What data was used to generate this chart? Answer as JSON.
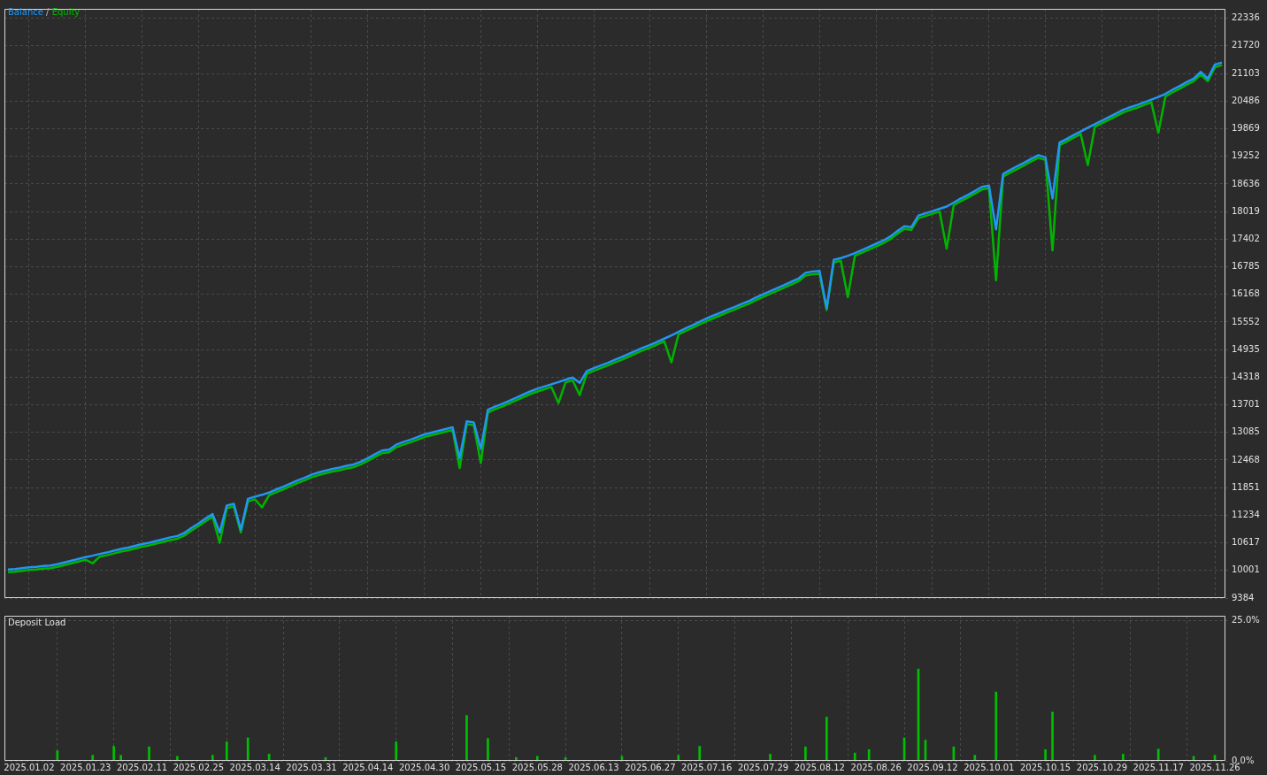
{
  "chart_data": [
    {
      "type": "line",
      "legend": "top left",
      "grid": true,
      "tick_labels": "y",
      "annotations": [
        "/"
      ],
      "categories": [
        null,
        null,
        null,
        "2025.01.02",
        null,
        null,
        null,
        null,
        null,
        null,
        null,
        "2025.01.23",
        null,
        null,
        null,
        null,
        null,
        null,
        null,
        "2025.02.11",
        null,
        null,
        null,
        null,
        null,
        null,
        null,
        "2025.02.25",
        null,
        null,
        null,
        null,
        null,
        null,
        null,
        "2025.03.14",
        null,
        null,
        null,
        null,
        null,
        null,
        null,
        "2025.03.31",
        null,
        null,
        null,
        null,
        null,
        null,
        null,
        "2025.04.14",
        null,
        null,
        null,
        null,
        null,
        null,
        null,
        "2025.04.30",
        null,
        null,
        null,
        null,
        null,
        null,
        null,
        "2025.05.15",
        null,
        null,
        null,
        null,
        null,
        null,
        null,
        "2025.05.28",
        null,
        null,
        null,
        null,
        null,
        null,
        null,
        "2025.06.13",
        null,
        null,
        null,
        null,
        null,
        null,
        null,
        "2025.06.27",
        null,
        null,
        null,
        null,
        null,
        null,
        null,
        "2025.07.16",
        null,
        null,
        null,
        null,
        null,
        null,
        null,
        "2025.07.29",
        null,
        null,
        null,
        null,
        null,
        null,
        null,
        "2025.08.12",
        null,
        null,
        null,
        null,
        null,
        null,
        null,
        "2025.08.26",
        null,
        null,
        null,
        null,
        null,
        null,
        null,
        "2025.09.12",
        null,
        null,
        null,
        null,
        null,
        null,
        null,
        "2025.10.01",
        null,
        null,
        null,
        null,
        null,
        null,
        null,
        "2025.10.15",
        null,
        null,
        null,
        null,
        null,
        null,
        null,
        "2025.10.29",
        null,
        null,
        null,
        null,
        null,
        null,
        null,
        "2025.11.17",
        null,
        null,
        null,
        null,
        null,
        null,
        null,
        "2025.11.26",
        null
      ],
      "ylim": [
        9384,
        22548
      ],
      "yticks": [
        9384,
        10001,
        10617,
        11234,
        11851,
        12468,
        13085,
        13701,
        14318,
        14935,
        15552,
        16168,
        16785,
        17402,
        18019,
        18636,
        19252,
        19869,
        20486,
        21103,
        21720,
        22336
      ],
      "series": [
        {
          "name": "Balance",
          "color": "#2196f3",
          "values": [
            10020,
            10030,
            10050,
            10070,
            10080,
            10100,
            10110,
            10140,
            10180,
            10220,
            10260,
            10300,
            10330,
            10370,
            10400,
            10440,
            10480,
            10510,
            10550,
            10590,
            10620,
            10660,
            10700,
            10740,
            10770,
            10840,
            10950,
            11050,
            11160,
            11260,
            10850,
            11450,
            11490,
            10910,
            11600,
            11650,
            11690,
            11740,
            11810,
            11870,
            11940,
            12010,
            12070,
            12140,
            12190,
            12230,
            12270,
            12300,
            12340,
            12370,
            12430,
            12510,
            12600,
            12680,
            12700,
            12810,
            12870,
            12920,
            12980,
            13040,
            13080,
            13120,
            13160,
            13200,
            12510,
            13330,
            13310,
            12720,
            13590,
            13660,
            13720,
            13790,
            13860,
            13930,
            14000,
            14060,
            14110,
            14160,
            14210,
            14260,
            14310,
            14190,
            14450,
            14520,
            14580,
            14640,
            14710,
            14770,
            14840,
            14910,
            14980,
            15040,
            15110,
            15180,
            15250,
            15330,
            15410,
            15480,
            15560,
            15630,
            15700,
            15760,
            15830,
            15890,
            15960,
            16020,
            16100,
            16170,
            16240,
            16310,
            16380,
            16450,
            16520,
            16650,
            16680,
            16690,
            15860,
            16940,
            16980,
            17030,
            17090,
            17160,
            17230,
            17300,
            17370,
            17460,
            17580,
            17690,
            17670,
            17930,
            17980,
            18030,
            18080,
            18130,
            18220,
            18310,
            18390,
            18480,
            18570,
            18600,
            17620,
            18860,
            18950,
            19030,
            19110,
            19200,
            19280,
            19230,
            18310,
            19560,
            19640,
            19730,
            19810,
            19890,
            19970,
            20050,
            20130,
            20210,
            20290,
            20350,
            20400,
            20460,
            20520,
            20580,
            20650,
            20740,
            20820,
            20910,
            20990,
            21140,
            20990,
            21300,
            21350
          ]
        },
        {
          "name": "Equity",
          "color": "#00b400",
          "values": [
            9960,
            9970,
            9990,
            10010,
            10020,
            10040,
            10050,
            10080,
            10120,
            10160,
            10200,
            10240,
            10160,
            10310,
            10340,
            10380,
            10420,
            10450,
            10490,
            10530,
            10560,
            10600,
            10640,
            10680,
            10710,
            10780,
            10890,
            10990,
            11100,
            11200,
            10620,
            11390,
            11430,
            10850,
            11540,
            11590,
            11410,
            11680,
            11750,
            11810,
            11880,
            11950,
            12010,
            12080,
            12130,
            12170,
            12210,
            12240,
            12280,
            12310,
            12370,
            12450,
            12540,
            12620,
            12640,
            12750,
            12810,
            12860,
            12920,
            12980,
            13020,
            13060,
            13100,
            13140,
            12290,
            13270,
            13250,
            12400,
            13530,
            13600,
            13660,
            13730,
            13800,
            13870,
            13940,
            14000,
            14050,
            14100,
            13740,
            14200,
            14250,
            13920,
            14390,
            14460,
            14520,
            14580,
            14650,
            14710,
            14780,
            14850,
            14920,
            14980,
            15050,
            15120,
            14650,
            15270,
            15350,
            15420,
            15500,
            15570,
            15640,
            15700,
            15770,
            15830,
            15900,
            15960,
            16040,
            16110,
            16180,
            16250,
            16320,
            16390,
            16460,
            16590,
            16620,
            16630,
            15820,
            16880,
            16920,
            16110,
            17030,
            17100,
            17170,
            17240,
            17310,
            17400,
            17520,
            17630,
            17610,
            17870,
            17920,
            17970,
            18020,
            17190,
            18160,
            18250,
            18330,
            18420,
            18510,
            18540,
            16480,
            18800,
            18890,
            18970,
            19050,
            19140,
            19220,
            19170,
            17150,
            19500,
            19580,
            19670,
            19750,
            19060,
            19910,
            19990,
            20070,
            20150,
            20230,
            20290,
            20340,
            20400,
            20460,
            19780,
            20590,
            20680,
            20760,
            20850,
            20930,
            21080,
            20930,
            21240,
            21290
          ]
        }
      ]
    },
    {
      "type": "bar",
      "title": "Deposit Load",
      "grid": true,
      "color": "#00c000",
      "categories": [
        null,
        null,
        null,
        "2025.01.02",
        null,
        null,
        null,
        null,
        null,
        null,
        null,
        "2025.01.23",
        null,
        null,
        null,
        null,
        null,
        null,
        null,
        "2025.02.11",
        null,
        null,
        null,
        null,
        null,
        null,
        null,
        "2025.02.25",
        null,
        null,
        null,
        null,
        null,
        null,
        null,
        "2025.03.14",
        null,
        null,
        null,
        null,
        null,
        null,
        null,
        "2025.03.31",
        null,
        null,
        null,
        null,
        null,
        null,
        null,
        "2025.04.14",
        null,
        null,
        null,
        null,
        null,
        null,
        null,
        "2025.04.30",
        null,
        null,
        null,
        null,
        null,
        null,
        null,
        "2025.05.15",
        null,
        null,
        null,
        null,
        null,
        null,
        null,
        "2025.05.28",
        null,
        null,
        null,
        null,
        null,
        null,
        null,
        "2025.06.13",
        null,
        null,
        null,
        null,
        null,
        null,
        null,
        "2025.06.27",
        null,
        null,
        null,
        null,
        null,
        null,
        null,
        "2025.07.16",
        null,
        null,
        null,
        null,
        null,
        null,
        null,
        "2025.07.29",
        null,
        null,
        null,
        null,
        null,
        null,
        null,
        "2025.08.12",
        null,
        null,
        null,
        null,
        null,
        null,
        null,
        "2025.08.26",
        null,
        null,
        null,
        null,
        null,
        null,
        null,
        "2025.09.12",
        null,
        null,
        null,
        null,
        null,
        null,
        null,
        "2025.10.01",
        null,
        null,
        null,
        null,
        null,
        null,
        null,
        "2025.10.15",
        null,
        null,
        null,
        null,
        null,
        null,
        null,
        "2025.10.29",
        null,
        null,
        null,
        null,
        null,
        null,
        null,
        "2025.11.17",
        null,
        null,
        null,
        null,
        null,
        null,
        null,
        "2025.11.26",
        null
      ],
      "ylim": [
        0,
        25.9
      ],
      "yticks": [
        {
          "value": 0,
          "label": "0.0%"
        },
        {
          "value": 25,
          "label": "25.0%"
        }
      ],
      "values": [
        null,
        null,
        null,
        null,
        null,
        null,
        null,
        1.8,
        null,
        null,
        null,
        null,
        1.0,
        null,
        null,
        2.6,
        1.0,
        null,
        null,
        null,
        2.5,
        null,
        null,
        null,
        0.8,
        null,
        null,
        null,
        null,
        1.0,
        null,
        3.4,
        null,
        null,
        4.1,
        null,
        null,
        1.2,
        null,
        null,
        null,
        null,
        null,
        null,
        null,
        0.6,
        null,
        null,
        null,
        null,
        null,
        null,
        null,
        null,
        null,
        3.4,
        null,
        null,
        null,
        null,
        null,
        null,
        null,
        null,
        null,
        8.1,
        null,
        null,
        4.0,
        null,
        null,
        null,
        0.6,
        null,
        null,
        0.8,
        null,
        null,
        null,
        0.6,
        null,
        null,
        null,
        null,
        null,
        null,
        null,
        0.8,
        null,
        null,
        null,
        null,
        null,
        null,
        null,
        1.0,
        null,
        null,
        2.6,
        null,
        null,
        null,
        null,
        null,
        null,
        null,
        null,
        null,
        1.2,
        null,
        null,
        null,
        null,
        2.5,
        null,
        null,
        7.8,
        null,
        null,
        null,
        1.4,
        null,
        2.0,
        null,
        null,
        null,
        null,
        4.1,
        null,
        16.4,
        3.7,
        null,
        null,
        null,
        2.5,
        null,
        null,
        1.0,
        null,
        null,
        12.3,
        null,
        null,
        null,
        null,
        null,
        null,
        2.0,
        8.7,
        null,
        null,
        null,
        null,
        null,
        1.0,
        null,
        null,
        null,
        1.2,
        null,
        null,
        null,
        null,
        2.1,
        null,
        null,
        null,
        null,
        0.8,
        null,
        null,
        1.0,
        null
      ]
    }
  ]
}
